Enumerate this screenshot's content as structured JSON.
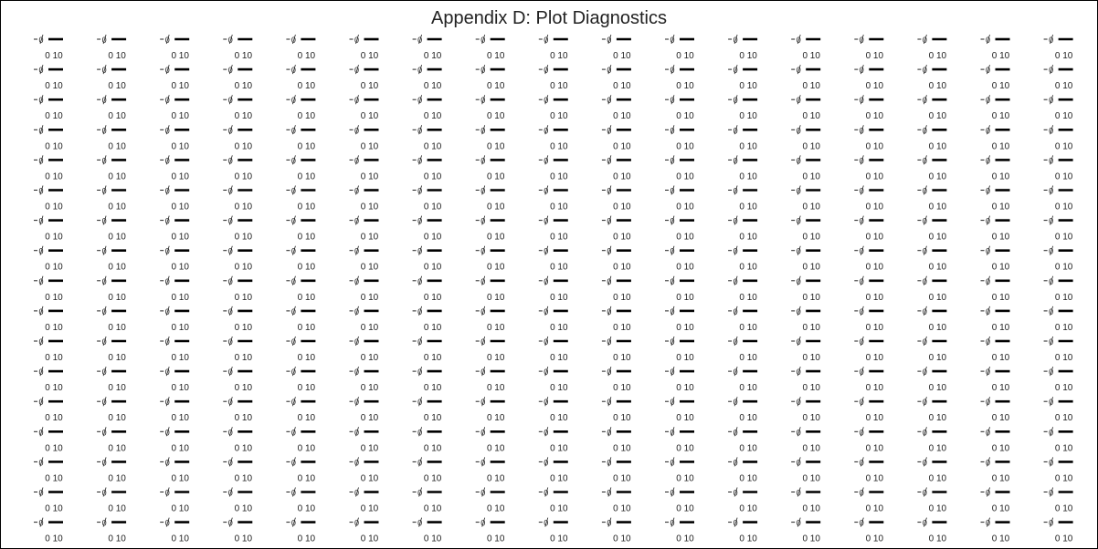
{
  "chart_data": {
    "type": "line",
    "title": "Appendix D: Plot Diagnostics",
    "grid": {
      "rows": 17,
      "cols": 17
    },
    "panel": {
      "x_tick_labels": [
        "0",
        "10"
      ],
      "y_tick_labels": [
        "0"
      ],
      "xlim": [
        0,
        19
      ],
      "ylim": [
        -2,
        2
      ],
      "series": [
        {
          "x": [
            0,
            19
          ],
          "y": [
            0,
            0
          ],
          "color": "#000000"
        }
      ]
    },
    "grid_lines": false,
    "legend": "none"
  }
}
